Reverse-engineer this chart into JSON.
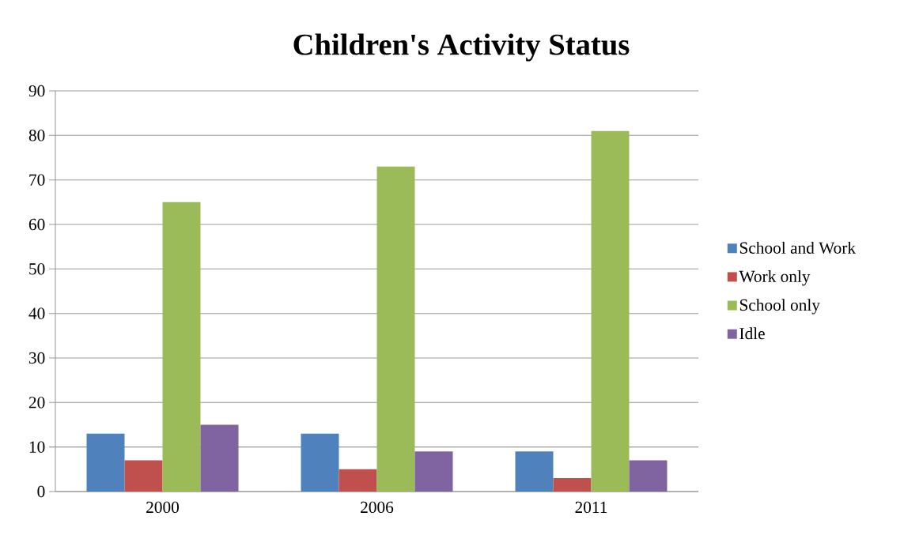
{
  "chart_data": {
    "type": "bar",
    "title": "Children's Activity Status",
    "categories": [
      "2000",
      "2006",
      "2011"
    ],
    "series": [
      {
        "name": "School and Work",
        "color": "#4f81bd",
        "values": [
          13,
          13,
          9
        ]
      },
      {
        "name": "Work only",
        "color": "#c0504d",
        "values": [
          7,
          5,
          3
        ]
      },
      {
        "name": "School only",
        "color": "#9bbb59",
        "values": [
          65,
          73,
          81
        ]
      },
      {
        "name": "Idle",
        "color": "#8064a2",
        "values": [
          15,
          9,
          7
        ]
      }
    ],
    "ylim": [
      0,
      90
    ],
    "yticks": [
      0,
      10,
      20,
      30,
      40,
      50,
      60,
      70,
      80,
      90
    ],
    "grid": "y",
    "legend": "right"
  }
}
